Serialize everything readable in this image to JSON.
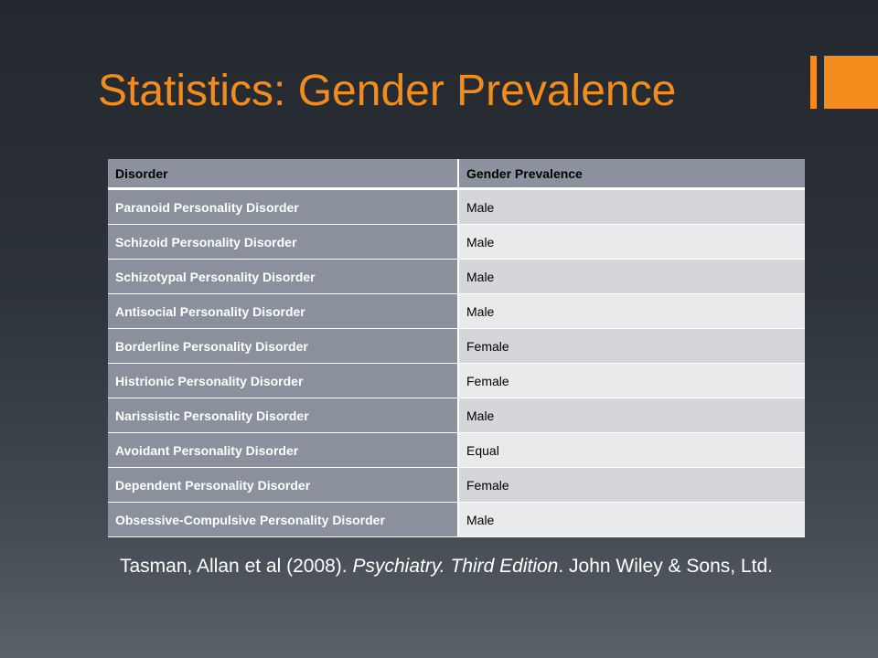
{
  "slide": {
    "title": "Statistics: Gender Prevalence",
    "accent_color": "#f28c1d"
  },
  "table": {
    "headers": [
      "Disorder",
      "Gender Prevalence"
    ],
    "rows": [
      {
        "disorder": "Paranoid Personality Disorder",
        "prevalence": "Male"
      },
      {
        "disorder": "Schizoid Personality Disorder",
        "prevalence": "Male"
      },
      {
        "disorder": "Schizotypal Personality Disorder",
        "prevalence": "Male"
      },
      {
        "disorder": "Antisocial Personality Disorder",
        "prevalence": "Male"
      },
      {
        "disorder": "Borderline Personality Disorder",
        "prevalence": "Female"
      },
      {
        "disorder": "Histrionic Personality Disorder",
        "prevalence": "Female"
      },
      {
        "disorder": "Narissistic Personality Disorder",
        "prevalence": "Male"
      },
      {
        "disorder": "Avoidant Personality Disorder",
        "prevalence": "Equal"
      },
      {
        "disorder": "Dependent Personality Disorder",
        "prevalence": "Female"
      },
      {
        "disorder": "Obsessive-Compulsive Personality Disorder",
        "prevalence": "Male"
      }
    ]
  },
  "citation": {
    "authors": "Tasman, Allan et al (2008). ",
    "book": "Psychiatry. Third Edition",
    "publisher": ". John Wiley & Sons, Ltd."
  }
}
